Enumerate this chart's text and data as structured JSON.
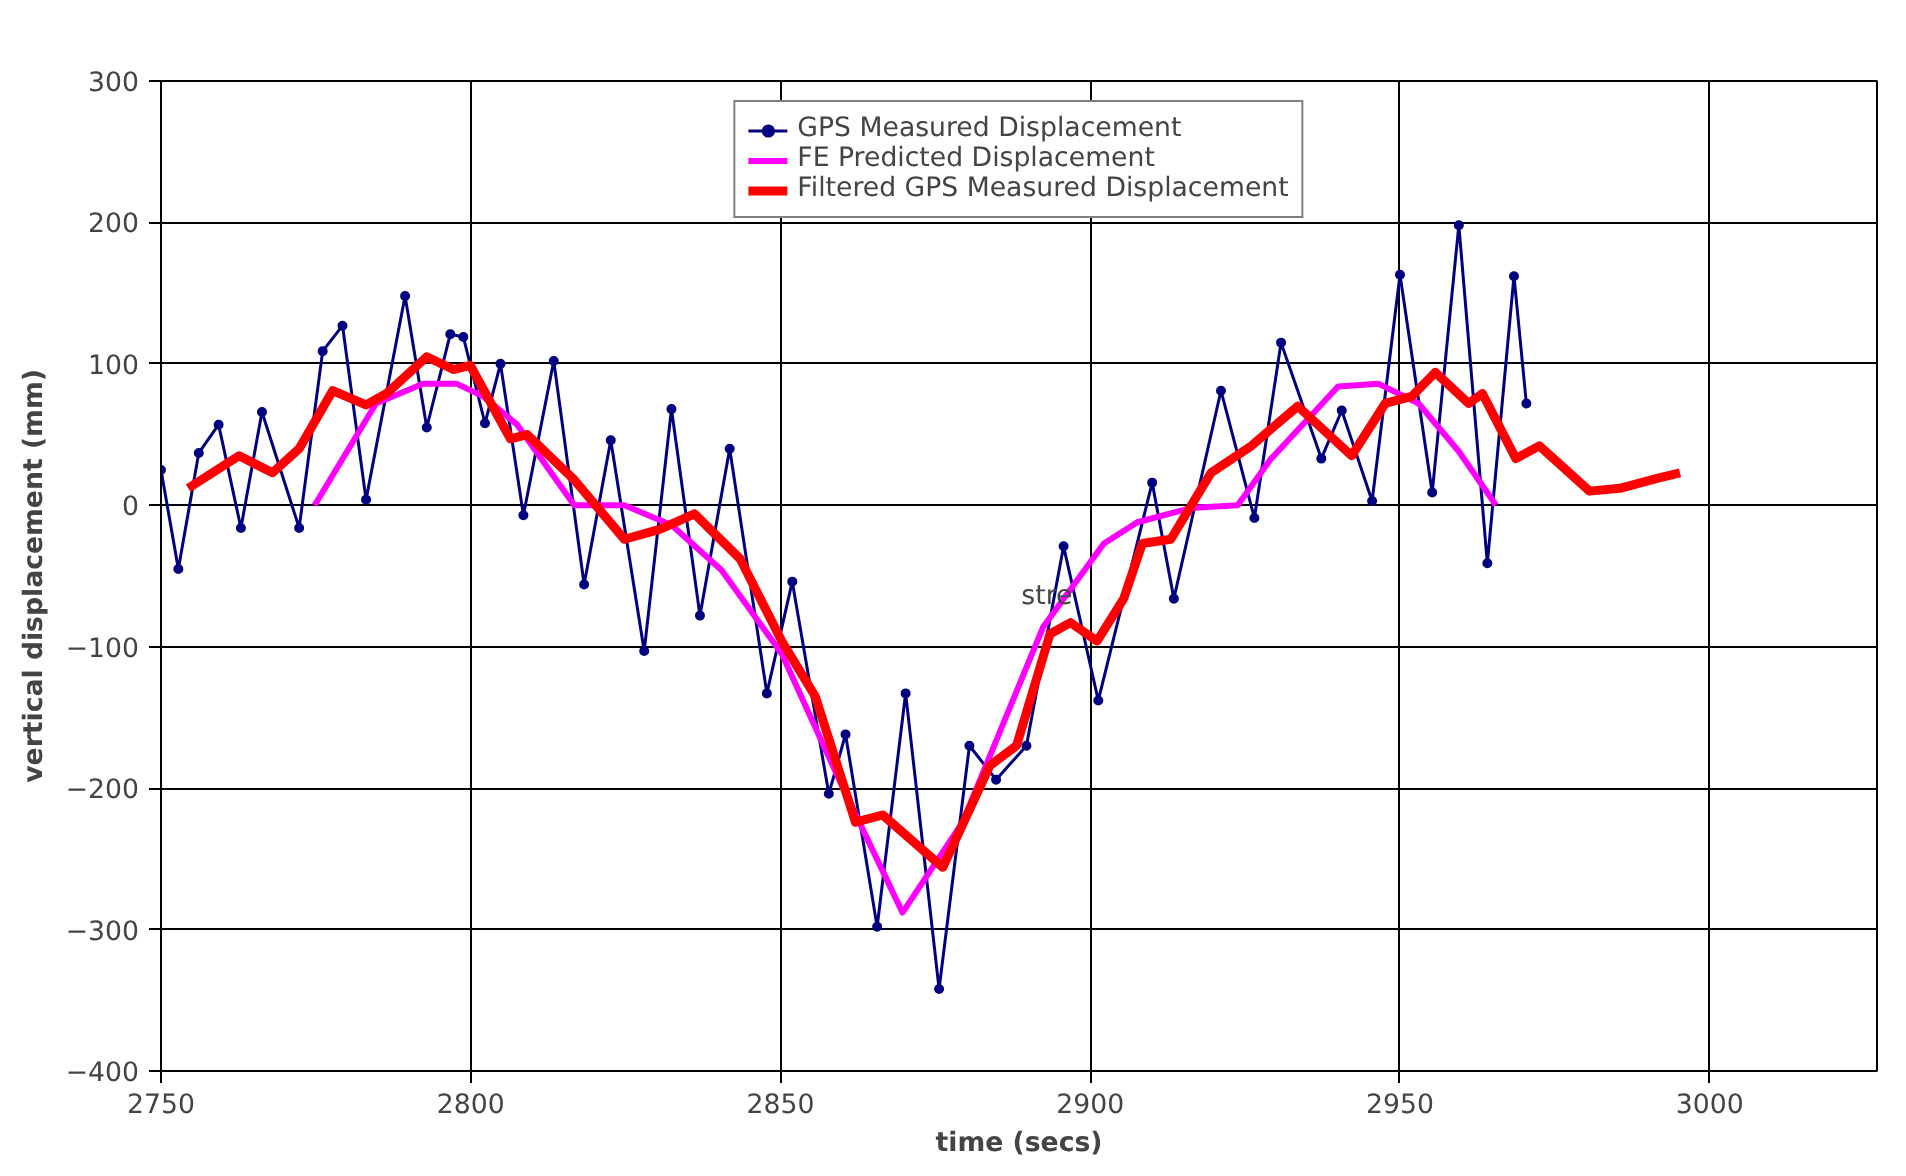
{
  "chart_data": {
    "type": "line",
    "xlabel": "time (secs)",
    "ylabel": "vertical displacement (mm)",
    "xlim": [
      2750,
      3027
    ],
    "xticks": [
      2750,
      2800,
      2850,
      2900,
      2950,
      3000
    ],
    "ylim": [
      -400,
      300
    ],
    "yticks": [
      -400,
      -300,
      -200,
      -100,
      0,
      100,
      200,
      300
    ],
    "grid": true,
    "legend": "top",
    "annotations": [
      {
        "text": "stre",
        "x": 2893,
        "y": -65
      }
    ],
    "series": [
      {
        "name": "GPS Measured Displacement",
        "color": "#000080",
        "marker": "circle",
        "x": [
          2750,
          2752.8,
          2756.1,
          2759.3,
          2762.9,
          2766.3,
          2772.3,
          2776.1,
          2779.3,
          2783.1,
          2789.4,
          2792.9,
          2796.7,
          2798.8,
          2802.3,
          2804.8,
          2808.5,
          2813.4,
          2818.3,
          2822.6,
          2828,
          2832.4,
          2837,
          2841.8,
          2847.8,
          2851.9,
          2857.8,
          2860.5,
          2865.6,
          2870.2,
          2875.6,
          2880.5,
          2884.8,
          2889.7,
          2895.7,
          2901.3,
          2910,
          2913.5,
          2921.1,
          2926.5,
          2930.8,
          2937.3,
          2940.6,
          2945.5,
          2950,
          2955.2,
          2959.5,
          2964.1,
          2968.4,
          2970.4
        ],
        "values": [
          25,
          -45,
          37,
          57,
          -16,
          66,
          -16,
          109,
          127,
          4,
          148,
          55,
          121,
          119,
          58,
          100,
          -7,
          102,
          -56,
          46,
          -103,
          68,
          -78,
          40,
          -133,
          -54,
          -204,
          -162,
          -298,
          -133,
          -342,
          -170,
          -194,
          -170,
          -29,
          -138,
          16,
          -66,
          81,
          -9,
          115,
          33,
          67,
          3,
          163,
          9,
          198,
          -41,
          162,
          72
        ]
      },
      {
        "name": "FE Predicted Displacement",
        "color": "#ff00ff",
        "marker": "none",
        "x": [
          2774.8,
          2784.7,
          2792.3,
          2797.7,
          2802,
          2807.5,
          2816.7,
          2824.8,
          2832.4,
          2840.5,
          2850.2,
          2860,
          2869.7,
          2879.4,
          2892.4,
          2902.2,
          2907.6,
          2916.2,
          2923.8,
          2929.2,
          2940,
          2946.5,
          2953,
          2959.5,
          2965.5
        ],
        "values": [
          0,
          72,
          86,
          86,
          77,
          57,
          0,
          0,
          -14,
          -46,
          -105,
          -199,
          -288,
          -224,
          -86,
          -27,
          -12,
          -2,
          0,
          33,
          84,
          86,
          72,
          38,
          0
        ]
      },
      {
        "name": "Filtered GPS Measured Displacement",
        "color": "#ff0000",
        "marker": "none",
        "x": [
          2754.4,
          2762.6,
          2768,
          2772.3,
          2777.7,
          2783.1,
          2786.4,
          2792.9,
          2797.2,
          2799.9,
          2806.4,
          2809.1,
          2816.7,
          2824.8,
          2830.5,
          2836.1,
          2843.5,
          2850.2,
          2855.6,
          2862.1,
          2866.5,
          2876.2,
          2883.8,
          2888.1,
          2893.5,
          2896.8,
          2901.1,
          2905.4,
          2908.4,
          2913,
          2919.5,
          2926,
          2933.5,
          2942.2,
          2947.6,
          2951.9,
          2955.7,
          2961.1,
          2963.3,
          2968.7,
          2972.5,
          2980.6,
          2985.5,
          2991.5,
          2995.2
        ],
        "values": [
          12,
          35,
          23,
          40,
          81,
          71,
          79,
          105,
          96,
          99,
          47,
          50,
          18,
          -24,
          -17,
          -6,
          -38,
          -96,
          -135,
          -224,
          -219,
          -256,
          -184,
          -170,
          -91,
          -83,
          -96,
          -66,
          -27,
          -24,
          23,
          42,
          70,
          35,
          72,
          77,
          94,
          72,
          79,
          33,
          42,
          10,
          12,
          19,
          23
        ]
      }
    ]
  }
}
